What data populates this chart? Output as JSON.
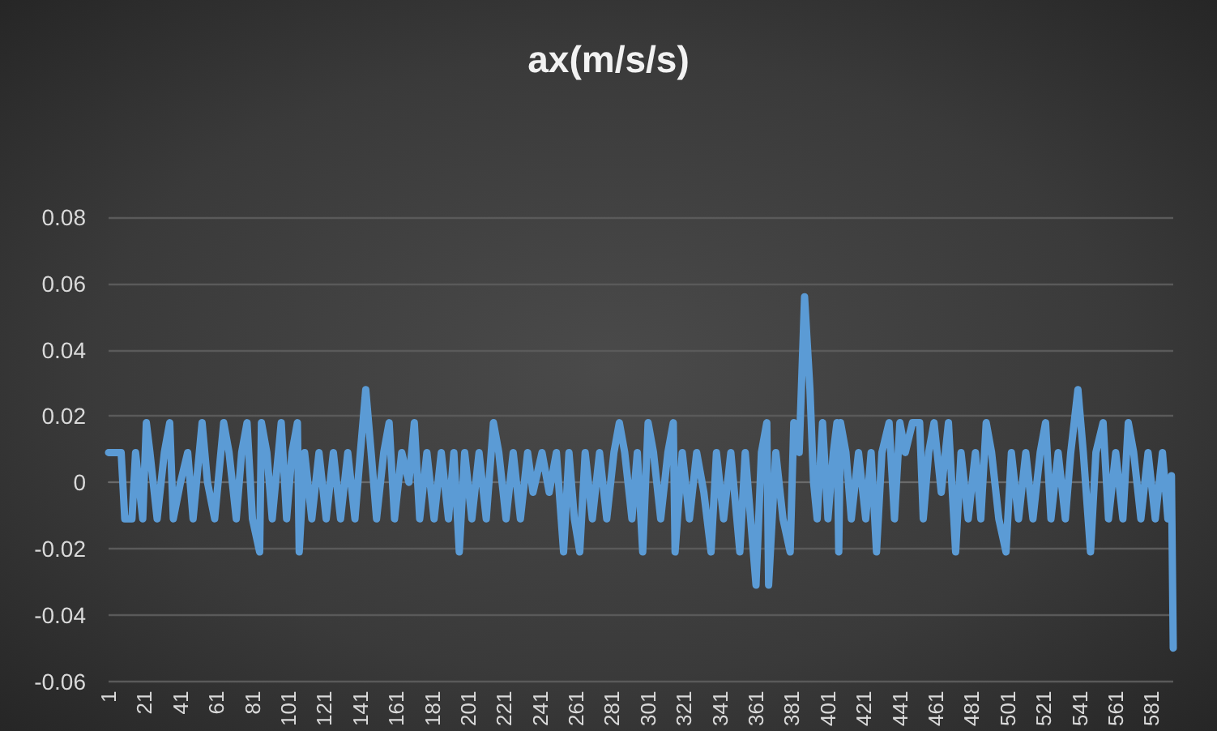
{
  "chart_data": {
    "type": "line",
    "title": "ax(m/s/s)",
    "x": [
      1,
      8,
      10,
      14,
      16,
      20,
      22,
      24,
      28,
      32,
      35,
      37,
      41,
      45,
      48,
      53,
      56,
      60,
      65,
      68,
      72,
      75,
      78,
      81,
      85,
      86,
      89,
      92,
      97,
      100,
      103,
      106,
      107,
      110,
      114,
      118,
      122,
      126,
      130,
      134,
      138,
      141,
      144,
      147,
      150,
      154,
      157,
      160,
      164,
      168,
      171,
      174,
      178,
      182,
      186,
      190,
      193,
      196,
      199,
      203,
      207,
      211,
      215,
      218,
      222,
      226,
      230,
      234,
      237,
      242,
      246,
      250,
      254,
      257,
      260,
      263,
      266,
      270,
      274,
      278,
      282,
      285,
      288,
      292,
      295,
      298,
      301,
      304,
      308,
      312,
      315,
      316,
      320,
      324,
      328,
      332,
      336,
      339,
      343,
      347,
      352,
      355,
      358,
      361,
      364,
      367,
      368,
      372,
      376,
      380,
      382,
      385,
      388,
      391,
      393,
      395,
      398,
      401,
      404,
      406,
      407,
      408,
      411,
      414,
      418,
      422,
      425,
      428,
      431,
      435,
      438,
      441,
      444,
      448,
      452,
      454,
      457,
      460,
      464,
      468,
      472,
      475,
      479,
      483,
      486,
      489,
      492,
      496,
      500,
      503,
      507,
      511,
      515,
      519,
      522,
      525,
      529,
      533,
      536,
      540,
      543,
      547,
      550,
      554,
      557,
      561,
      565,
      568,
      571,
      575,
      579,
      583,
      587,
      590,
      592,
      593
    ],
    "series": [
      {
        "color": "#5b9bd5",
        "values": [
          0.009,
          0.009,
          -0.011,
          -0.011,
          0.009,
          -0.011,
          0.018,
          0.009,
          -0.011,
          0.009,
          0.018,
          -0.011,
          0,
          0.009,
          -0.011,
          0.018,
          0,
          -0.011,
          0.018,
          0.009,
          -0.011,
          0.009,
          0.018,
          -0.011,
          -0.021,
          0.018,
          0.009,
          -0.011,
          0.018,
          -0.011,
          0.009,
          0.018,
          -0.021,
          0.009,
          -0.011,
          0.009,
          -0.011,
          0.009,
          -0.011,
          0.009,
          -0.011,
          0.009,
          0.028,
          0.009,
          -0.011,
          0.009,
          0.018,
          -0.011,
          0.009,
          0,
          0.018,
          -0.011,
          0.009,
          -0.011,
          0.009,
          -0.011,
          0.009,
          -0.021,
          0.009,
          -0.011,
          0.009,
          -0.011,
          0.018,
          0.009,
          -0.011,
          0.009,
          -0.011,
          0.009,
          -0.003,
          0.009,
          -0.003,
          0.009,
          -0.021,
          0.009,
          -0.011,
          -0.021,
          0.009,
          -0.011,
          0.009,
          -0.011,
          0.009,
          0.018,
          0.009,
          -0.011,
          0.009,
          -0.021,
          0.018,
          0.009,
          -0.011,
          0.009,
          0.018,
          -0.021,
          0.009,
          -0.011,
          0.009,
          -0.003,
          -0.021,
          0.009,
          -0.011,
          0.009,
          -0.021,
          0.009,
          -0.011,
          -0.031,
          0.009,
          0.018,
          -0.031,
          0.009,
          -0.011,
          -0.021,
          0.018,
          0.009,
          0.056,
          0.028,
          0,
          -0.011,
          0.018,
          -0.011,
          0.009,
          0.018,
          -0.021,
          0.018,
          0.009,
          -0.011,
          0.009,
          -0.011,
          0.009,
          -0.021,
          0.009,
          0.018,
          -0.011,
          0.018,
          0.009,
          0.018,
          0.018,
          -0.011,
          0.009,
          0.018,
          -0.003,
          0.018,
          -0.021,
          0.009,
          -0.011,
          0.009,
          -0.011,
          0.018,
          0.009,
          -0.011,
          -0.021,
          0.009,
          -0.011,
          0.009,
          -0.011,
          0.009,
          0.018,
          -0.011,
          0.009,
          -0.011,
          0.009,
          0.028,
          0.009,
          -0.021,
          0.009,
          0.018,
          -0.011,
          0.009,
          -0.011,
          0.018,
          0.009,
          -0.011,
          0.009,
          -0.011,
          0.009,
          -0.011,
          0.002,
          -0.05
        ]
      }
    ],
    "xlim": [
      1,
      593
    ],
    "xticks": [
      1,
      21,
      41,
      61,
      81,
      101,
      121,
      141,
      161,
      181,
      201,
      221,
      241,
      261,
      281,
      301,
      321,
      341,
      361,
      381,
      401,
      421,
      441,
      461,
      481,
      501,
      521,
      541,
      561,
      581
    ],
    "ylim": [
      -0.06,
      0.08
    ],
    "yticks": [
      -0.06,
      -0.04,
      -0.02,
      0,
      0.02,
      0.04,
      0.06,
      0.08
    ],
    "grid": "y",
    "marker": "none"
  }
}
